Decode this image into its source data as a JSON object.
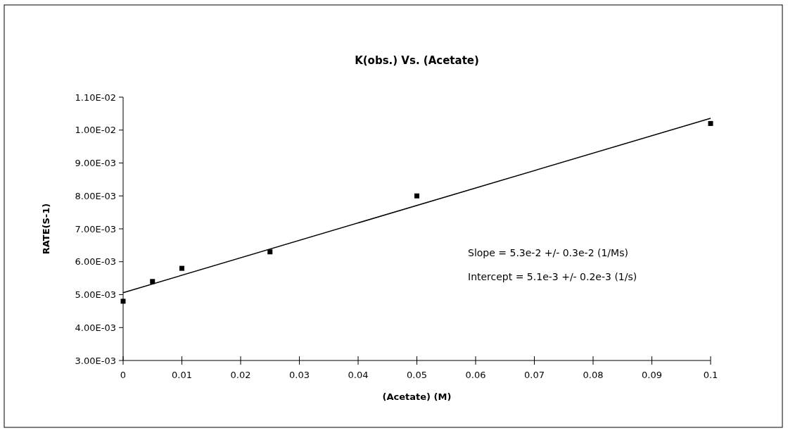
{
  "chart_data": {
    "type": "scatter",
    "title": "K(obs.) Vs. (Acetate)",
    "xlabel": "(Acetate) (M)",
    "ylabel": "RATE(S-1)",
    "series": [
      {
        "color": "#000000",
        "marker": "square",
        "x": [
          0,
          0.005,
          0.01,
          0.025,
          0.05,
          0.1
        ],
        "values": [
          0.0048,
          0.0054,
          0.0058,
          0.0063,
          0.008,
          0.0102
        ]
      },
      {
        "type": "line",
        "color": "#000000",
        "marker": "none",
        "x": [
          0,
          0.1
        ],
        "values": [
          0.00506,
          0.01036
        ]
      }
    ],
    "xlim": [
      0,
      0.1
    ],
    "xticks": [
      0,
      0.01,
      0.02,
      0.03,
      0.04,
      0.05,
      0.06,
      0.07,
      0.08,
      0.09,
      0.1
    ],
    "ylim": [
      0.003,
      0.011
    ],
    "yticks": [
      {
        "value": 0.003,
        "label": "3.00E-03"
      },
      {
        "value": 0.004,
        "label": "4.00E-03"
      },
      {
        "value": 0.005,
        "label": "5.00E-03"
      },
      {
        "value": 0.006,
        "label": "6.00E-03"
      },
      {
        "value": 0.007,
        "label": "7.00E-03"
      },
      {
        "value": 0.008,
        "label": "8.00E-03"
      },
      {
        "value": 0.009,
        "label": "9.00E-03"
      },
      {
        "value": 0.01,
        "label": "1.00E-02"
      },
      {
        "value": 0.011,
        "label": "1.10E-02"
      }
    ],
    "annotations": [
      "Slope = 5.3e-2 +/- 0.3e-2 (1/Ms)",
      "Intercept = 5.1e-3 +/- 0.2e-3 (1/s)"
    ],
    "grid": false
  }
}
